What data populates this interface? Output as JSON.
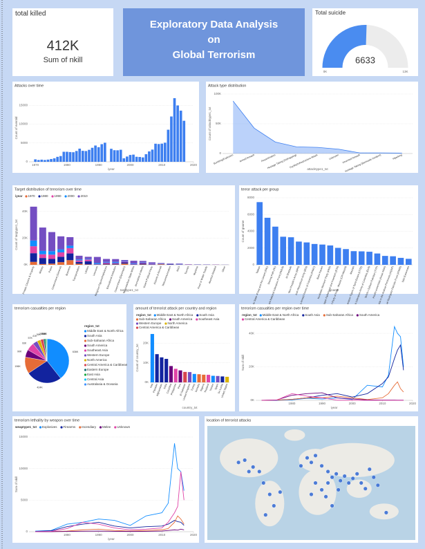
{
  "chart_data": [
    {
      "type": "card",
      "title": "total killed",
      "values": [
        412000
      ],
      "value_labels": [
        "412K"
      ],
      "label": "Sum of nkill"
    },
    {
      "type": "banner",
      "lines": [
        "Exploratory  Data Analysis",
        "on",
        "Global Terrorism"
      ]
    },
    {
      "type": "gauge",
      "title": "Total suicide",
      "values": [
        6633
      ],
      "color": "#4a8cf0",
      "ylim": [
        0,
        13000
      ],
      "yticks": [
        {
          "value": 0,
          "label": "0K"
        },
        {
          "value": 13000,
          "label": "13K"
        }
      ]
    },
    {
      "type": "bar",
      "title": "Attacks over time",
      "xlabel": "iyear",
      "ylabel": "Count of eventid",
      "color": "#3d7ff0",
      "x": [
        1970,
        1971,
        1972,
        1973,
        1974,
        1975,
        1976,
        1977,
        1978,
        1979,
        1980,
        1981,
        1982,
        1983,
        1984,
        1985,
        1986,
        1987,
        1988,
        1989,
        1990,
        1991,
        1992,
        1994,
        1995,
        1996,
        1997,
        1998,
        1999,
        2000,
        2001,
        2002,
        2003,
        2004,
        2005,
        2006,
        2007,
        2008,
        2009,
        2010,
        2011,
        2012,
        2013,
        2014,
        2015,
        2016,
        2017
      ],
      "values": [
        651,
        471,
        568,
        473,
        581,
        740,
        923,
        1319,
        1526,
        2662,
        2662,
        2586,
        2544,
        2870,
        3495,
        2915,
        2860,
        3183,
        3721,
        4324,
        3887,
        4683,
        5071,
        3456,
        3081,
        3058,
        3197,
        934,
        1395,
        1814,
        1906,
        1333,
        1278,
        1166,
        2017,
        2758,
        3242,
        4805,
        4721,
        4826,
        5076,
        8522,
        12036,
        16903,
        14965,
        13587,
        10900
      ],
      "xlim": [
        1968,
        2020
      ],
      "xticks": [
        1970,
        1980,
        1990,
        2000,
        2010,
        2020
      ],
      "ylim": [
        0,
        18000
      ],
      "yticks": [
        0,
        5000,
        10000,
        15000
      ],
      "grid": true
    },
    {
      "type": "area",
      "title": "Attack type distribution",
      "xlabel": "attacktype1_txt",
      "ylabel": "Count of attacktype1_txt",
      "color": "#3d7ff0",
      "categories": [
        "Bombing/Explosion",
        "Armed Assault",
        "Assassination",
        "Hostage Taking (Kidnapping)",
        "Facility/Infrastructure Attack",
        "Unknown",
        "Unarmed Assault",
        "Hostage Taking (Barricade Incident)",
        "Hijacking"
      ],
      "values": [
        88255,
        42669,
        19312,
        11158,
        10356,
        7276,
        1015,
        991,
        659
      ],
      "ylim": [
        0,
        100000
      ],
      "yticks": [
        0,
        {
          "value": 50000,
          "label": "50K"
        },
        {
          "value": 100000,
          "label": "100K"
        }
      ],
      "grid": true
    },
    {
      "type": "stacked_bar",
      "title": "Target distribution of terrorism over time",
      "xlabel": "targtype1_txt",
      "ylabel": "Count of targtype1_txt",
      "legend_title": "iyear",
      "categories": [
        "Private Citizens & Property",
        "Military",
        "Police",
        "Government (General)",
        "Business",
        "Transportation",
        "Utilities",
        "Unknown",
        "Religious Figures/Institutions",
        "Educational Institution",
        "Government (Diplomatic)",
        "Terrorists/Non-State Militia",
        "Journalists & Media",
        "Violent Political Party",
        "Airports & Aircraft",
        "Telecommunication",
        "NGO",
        "Tourists",
        "Maritime",
        "Food or Water Supply",
        "Abortion Related",
        "Other"
      ],
      "series": [
        {
          "name": "1970",
          "color": "#e66c37",
          "values": [
            2200,
            600,
            900,
            2000,
            3500,
            800,
            300,
            100,
            300,
            300,
            900,
            50,
            300,
            100,
            400,
            50,
            20,
            30,
            30,
            10,
            30,
            10
          ]
        },
        {
          "name": "1980",
          "color": "#12239e",
          "values": [
            6500,
            4500,
            3500,
            4000,
            5000,
            1400,
            2400,
            300,
            600,
            600,
            900,
            300,
            700,
            300,
            300,
            400,
            150,
            80,
            60,
            60,
            100,
            20
          ]
        },
        {
          "name": "1990",
          "color": "#e044a7",
          "values": [
            5200,
            2800,
            3200,
            3300,
            4000,
            1100,
            1300,
            200,
            700,
            500,
            600,
            300,
            500,
            400,
            200,
            200,
            200,
            150,
            80,
            80,
            100,
            30
          ]
        },
        {
          "name": "2000",
          "color": "#118dff",
          "values": [
            4300,
            2500,
            2600,
            2300,
            1800,
            700,
            500,
            700,
            600,
            800,
            400,
            400,
            400,
            300,
            150,
            100,
            250,
            80,
            80,
            60,
            20,
            30
          ]
        },
        {
          "name": "2010",
          "color": "#744ec2",
          "values": [
            25300,
            17500,
            14300,
            9700,
            6400,
            2800,
            1500,
            4600,
            2200,
            2100,
            800,
            2000,
            1000,
            800,
            300,
            250,
            350,
            100,
            100,
            100,
            10,
            50
          ]
        }
      ],
      "ylim": [
        0,
        45000
      ],
      "yticks": [
        {
          "value": 0,
          "label": "0K"
        },
        {
          "value": 20000,
          "label": "20K"
        },
        {
          "value": 40000,
          "label": "40K"
        }
      ],
      "grid": true
    },
    {
      "type": "bar",
      "title": "terror attack per group",
      "xlabel": "gname",
      "ylabel": "Count of gname",
      "color": "#3d7ff0",
      "categories": [
        "Taliban",
        "Islamic State of Iraq and the Levant (ISIL)",
        "Shining Path (SL)",
        "Farabundo Marti National Liberation Front (FMLN)",
        "Al-Shabaab",
        "New People's Army (NPA)",
        "Irish Republican Army (IRA)",
        "Revolutionary Armed Forces of Colombia (FARC)",
        "Boko Haram",
        "Kurdistan Workers' Party (PKK)",
        "Basque Fatherland and Freedom (ETA)",
        "Communist Party of India - Maoist (CPI-Maoist)",
        "Maoists",
        "Liberation Tigers of Tamil Eelam (LTTE)",
        "National Liberation Army of Colombia (ELN)",
        "Tehrik-i-Taliban Pakistan (TTP)",
        "Houthi extremists (Ansar Allah)",
        "Al-Qaida in the Arabian Peninsula (AQAP)",
        "Manuel Rodriguez Patriotic Front (FPMR)",
        "Sikh Extremists"
      ],
      "values": [
        7478,
        5613,
        4555,
        3351,
        3288,
        2772,
        2671,
        2487,
        2418,
        2310,
        2024,
        1878,
        1630,
        1606,
        1561,
        1351,
        1062,
        1020,
        830,
        716
      ],
      "ylim": [
        0,
        8000
      ],
      "yticks": [
        0,
        2000,
        4000,
        6000,
        8000
      ],
      "grid": true
    },
    {
      "type": "pie",
      "title": "terrorism casualties per region",
      "legend_title": "region_txt",
      "categories": [
        "Middle East & North Africa",
        "South Asia",
        "Sub-Saharan Africa",
        "South America",
        "Southeast Asia",
        "Western Europe",
        "North America",
        "Central America & Caribbean",
        "Eastern Europe",
        "East Asia",
        "Central Asia",
        "Australasia & Oceania"
      ],
      "values": [
        636000,
        424000,
        196000,
        90000,
        93000,
        57000,
        41000,
        36000,
        20000,
        15000,
        6000,
        400
      ],
      "value_labels": [
        "636K",
        "424K",
        "196K",
        "90K",
        "93K",
        "57K",
        "41K",
        "36K",
        "20K",
        "15K",
        "6K",
        "0.4K"
      ],
      "colors": [
        "#118dff",
        "#12239e",
        "#e66c37",
        "#6b007b",
        "#e044a7",
        "#744ec2",
        "#d9b300",
        "#d64550",
        "#197278",
        "#1aab40",
        "#15c6f4",
        "#4092ff"
      ]
    },
    {
      "type": "bar",
      "title": "amount of terrorist attack per country and region",
      "xlabel": "country_txt",
      "ylabel": "Count of country_txt",
      "categories": [
        "Iraq",
        "Pakistan",
        "Afghanistan",
        "India",
        "Colombia",
        "Philippines",
        "Peru",
        "El Salvador",
        "United Kingdom",
        "Turkey",
        "Somalia",
        "Nigeria",
        "Thailand",
        "Yemen",
        "Spain",
        "Sri Lanka",
        "United States"
      ],
      "values": [
        24636,
        14368,
        12731,
        11960,
        8306,
        6908,
        6096,
        5320,
        5235,
        4292,
        4142,
        3907,
        3849,
        3347,
        3249,
        3022,
        2836
      ],
      "colors": [
        "#118dff",
        "#12239e",
        "#12239e",
        "#12239e",
        "#6b007b",
        "#e044a7",
        "#6b007b",
        "#d64550",
        "#744ec2",
        "#118dff",
        "#e66c37",
        "#e66c37",
        "#e044a7",
        "#118dff",
        "#744ec2",
        "#12239e",
        "#d9b300"
      ],
      "legend": {
        "title": "region_txt",
        "names": [
          "Middle East & North Africa",
          "South Asia",
          "Sub-Saharan Africa",
          "South America",
          "Southeast Asia",
          "Western Europe",
          "North America",
          "Central America & Caribbean"
        ],
        "colors": [
          "#118dff",
          "#12239e",
          "#e66c37",
          "#6b007b",
          "#e044a7",
          "#744ec2",
          "#d9b300",
          "#d64550"
        ]
      },
      "ylim": [
        0,
        25000
      ],
      "yticks": [
        {
          "value": 0,
          "label": "0K"
        },
        {
          "value": 10000,
          "label": "10K"
        },
        {
          "value": 20000,
          "label": "20K"
        }
      ],
      "grid": true
    },
    {
      "type": "line",
      "title": "terrorism casualties per region over time",
      "xlabel": "iyear",
      "ylabel": "Sum of nkill",
      "legend_title": "region_txt",
      "x": [
        1970,
        1975,
        1980,
        1985,
        1990,
        1995,
        2000,
        2005,
        2010,
        2012,
        2014,
        2015,
        2016,
        2017
      ],
      "series": [
        {
          "name": "Middle East & North Africa",
          "color": "#118dff",
          "values": [
            0,
            100,
            300,
            1200,
            800,
            1500,
            500,
            9000,
            8000,
            15000,
            44000,
            40000,
            38000,
            20000
          ]
        },
        {
          "name": "South Asia",
          "color": "#12239e",
          "values": [
            0,
            50,
            600,
            1500,
            3000,
            4000,
            2000,
            4000,
            10000,
            14000,
            25000,
            30000,
            33000,
            18000
          ]
        },
        {
          "name": "Sub-Saharan Africa",
          "color": "#e66c37",
          "values": [
            0,
            200,
            600,
            1500,
            1500,
            2500,
            1500,
            500,
            1500,
            4000,
            9000,
            11000,
            7000,
            5000
          ]
        },
        {
          "name": "South America",
          "color": "#6b007b",
          "values": [
            50,
            300,
            3000,
            4000,
            4500,
            1500,
            800,
            300,
            200,
            200,
            200,
            100,
            100,
            100
          ]
        },
        {
          "name": "Central America & Caribbean",
          "color": "#e044a7",
          "values": [
            20,
            200,
            4000,
            2500,
            1500,
            100,
            10,
            10,
            10,
            20,
            10,
            10,
            10,
            10
          ]
        }
      ],
      "xlim": [
        1968,
        2020
      ],
      "xticks": [
        1980,
        1990,
        2000,
        2010,
        2020
      ],
      "ylim": [
        0,
        45000
      ],
      "yticks": [
        {
          "value": 0,
          "label": "0K"
        },
        {
          "value": 20000,
          "label": "20K"
        },
        {
          "value": 40000,
          "label": "40K"
        }
      ],
      "grid": true
    },
    {
      "type": "line",
      "title": "terrorism lethality by weapon over time",
      "xlabel": "iyear",
      "ylabel": "Sum of nkill",
      "legend_title": "weaptype1_txt",
      "x": [
        1970,
        1975,
        1980,
        1985,
        1990,
        1995,
        2000,
        2005,
        2010,
        2012,
        2014,
        2015,
        2016,
        2017
      ],
      "series": [
        {
          "name": "Explosives",
          "color": "#118dff",
          "values": [
            100,
            200,
            1200,
            1500,
            2000,
            1800,
            1000,
            2500,
            3000,
            4500,
            14000,
            10000,
            9500,
            6500
          ]
        },
        {
          "name": "Firearms",
          "color": "#12239e",
          "values": [
            50,
            150,
            800,
            1200,
            1500,
            900,
            600,
            800,
            900,
            1200,
            1800,
            1600,
            1500,
            1000
          ]
        },
        {
          "name": "Incendiary",
          "color": "#e66c37",
          "values": [
            0,
            20,
            100,
            300,
            400,
            200,
            100,
            200,
            300,
            500,
            1500,
            2500,
            2000,
            1200
          ]
        },
        {
          "name": "Melee",
          "color": "#6b007b",
          "values": [
            0,
            10,
            50,
            80,
            100,
            60,
            40,
            60,
            100,
            200,
            300,
            250,
            400,
            300
          ]
        },
        {
          "name": "Unknown",
          "color": "#e044a7",
          "values": [
            0,
            50,
            500,
            1500,
            1200,
            600,
            300,
            400,
            600,
            1500,
            3000,
            4000,
            9500,
            5000
          ]
        }
      ],
      "xlim": [
        1968,
        2020
      ],
      "xticks": [
        1980,
        1990,
        2000,
        2010,
        2020
      ],
      "ylim": [
        0,
        15000
      ],
      "yticks": [
        0,
        5000,
        10000,
        15000
      ],
      "grid": true
    },
    {
      "type": "map",
      "title": "location of terrorist attacks"
    }
  ]
}
